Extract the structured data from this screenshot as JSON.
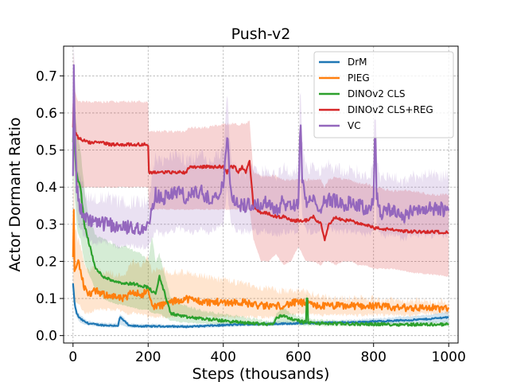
{
  "chart_data": {
    "type": "line",
    "title": "Push-v2",
    "xlabel": "Steps (thousands)",
    "ylabel": "Actor Dormant Ratio",
    "xlim": [
      -25,
      1025
    ],
    "ylim": [
      -0.02,
      0.78
    ],
    "xticks": [
      0,
      200,
      400,
      600,
      800,
      1000
    ],
    "xtick_labels": [
      "0",
      "200",
      "400",
      "600",
      "800",
      "1000"
    ],
    "yticks": [
      0.0,
      0.1,
      0.2,
      0.3,
      0.4,
      0.5,
      0.6,
      0.7
    ],
    "ytick_labels": [
      "0.0",
      "0.1",
      "0.2",
      "0.3",
      "0.4",
      "0.5",
      "0.6",
      "0.7"
    ],
    "grid": true,
    "legend_position": "top-right",
    "series": [
      {
        "name": "DrM",
        "color": "#1f77b4",
        "x": [
          0,
          3,
          6,
          10,
          15,
          20,
          30,
          40,
          60,
          80,
          100,
          120,
          125,
          150,
          200,
          250,
          300,
          350,
          400,
          450,
          500,
          550,
          600,
          650,
          700,
          750,
          800,
          850,
          900,
          950,
          1000
        ],
        "values": [
          0.14,
          0.1,
          0.075,
          0.06,
          0.05,
          0.045,
          0.038,
          0.033,
          0.03,
          0.028,
          0.027,
          0.027,
          0.05,
          0.026,
          0.025,
          0.025,
          0.024,
          0.026,
          0.028,
          0.03,
          0.031,
          0.032,
          0.033,
          0.034,
          0.035,
          0.036,
          0.038,
          0.04,
          0.042,
          0.045,
          0.05
        ],
        "band_low": [
          0.12,
          0.08,
          0.06,
          0.05,
          0.04,
          0.035,
          0.03,
          0.028,
          0.025,
          0.023,
          0.022,
          0.022,
          0.03,
          0.021,
          0.02,
          0.02,
          0.02,
          0.021,
          0.023,
          0.025,
          0.026,
          0.027,
          0.028,
          0.029,
          0.03,
          0.03,
          0.031,
          0.032,
          0.033,
          0.034,
          0.035
        ],
        "band_high": [
          0.16,
          0.12,
          0.09,
          0.07,
          0.06,
          0.055,
          0.046,
          0.04,
          0.036,
          0.034,
          0.033,
          0.033,
          0.06,
          0.032,
          0.031,
          0.03,
          0.029,
          0.031,
          0.034,
          0.036,
          0.037,
          0.038,
          0.039,
          0.04,
          0.041,
          0.043,
          0.046,
          0.049,
          0.052,
          0.056,
          0.065
        ],
        "jitter": 0.002
      },
      {
        "name": "PIEG",
        "color": "#ff7f0e",
        "x": [
          0,
          2,
          4,
          8,
          12,
          20,
          30,
          40,
          60,
          80,
          100,
          120,
          140,
          160,
          180,
          200,
          210,
          230,
          260,
          300,
          350,
          400,
          450,
          500,
          550,
          600,
          650,
          700,
          750,
          800,
          850,
          900,
          950,
          1000
        ],
        "values": [
          0.21,
          0.33,
          0.17,
          0.19,
          0.2,
          0.18,
          0.13,
          0.11,
          0.12,
          0.11,
          0.11,
          0.1,
          0.1,
          0.12,
          0.11,
          0.12,
          0.08,
          0.08,
          0.09,
          0.1,
          0.09,
          0.09,
          0.09,
          0.08,
          0.08,
          0.09,
          0.08,
          0.08,
          0.08,
          0.08,
          0.075,
          0.075,
          0.075,
          0.072
        ],
        "band_low": [
          0.1,
          0.15,
          0.08,
          0.09,
          0.09,
          0.08,
          0.06,
          0.06,
          0.07,
          0.07,
          0.07,
          0.07,
          0.06,
          0.06,
          0.06,
          0.05,
          0.05,
          0.05,
          0.05,
          0.05,
          0.05,
          0.05,
          0.05,
          0.05,
          0.05,
          0.06,
          0.055,
          0.055,
          0.055,
          0.055,
          0.055,
          0.055,
          0.06,
          0.06
        ],
        "band_high": [
          0.3,
          0.45,
          0.3,
          0.28,
          0.26,
          0.24,
          0.2,
          0.18,
          0.18,
          0.17,
          0.17,
          0.16,
          0.17,
          0.2,
          0.19,
          0.21,
          0.17,
          0.18,
          0.17,
          0.17,
          0.16,
          0.15,
          0.14,
          0.13,
          0.12,
          0.12,
          0.11,
          0.1,
          0.1,
          0.1,
          0.095,
          0.095,
          0.09,
          0.09
        ],
        "jitter": 0.01
      },
      {
        "name": "DINOv2 CLS",
        "color": "#2ca02c",
        "x": [
          0,
          2,
          4,
          8,
          12,
          20,
          30,
          40,
          50,
          60,
          80,
          100,
          120,
          140,
          160,
          180,
          200,
          210,
          220,
          230,
          260,
          300,
          350,
          400,
          450,
          500,
          530,
          545,
          560,
          580,
          600,
          620,
          623,
          626,
          650,
          700,
          750,
          800,
          850,
          900,
          950,
          1000
        ],
        "values": [
          0.52,
          0.6,
          0.52,
          0.45,
          0.42,
          0.4,
          0.3,
          0.26,
          0.22,
          0.18,
          0.16,
          0.15,
          0.145,
          0.14,
          0.14,
          0.135,
          0.13,
          0.12,
          0.11,
          0.16,
          0.06,
          0.05,
          0.045,
          0.04,
          0.035,
          0.032,
          0.03,
          0.05,
          0.055,
          0.045,
          0.04,
          0.035,
          0.13,
          0.035,
          0.033,
          0.032,
          0.031,
          0.031,
          0.03,
          0.03,
          0.03,
          0.03
        ],
        "band_low": [
          0.4,
          0.45,
          0.38,
          0.32,
          0.28,
          0.26,
          0.2,
          0.17,
          0.15,
          0.12,
          0.1,
          0.09,
          0.085,
          0.08,
          0.075,
          0.07,
          0.07,
          0.06,
          0.06,
          0.06,
          0.04,
          0.035,
          0.032,
          0.03,
          0.028,
          0.027,
          0.026,
          0.03,
          0.035,
          0.03,
          0.028,
          0.027,
          0.03,
          0.027,
          0.026,
          0.026,
          0.026,
          0.026,
          0.026,
          0.026,
          0.026,
          0.026
        ],
        "band_high": [
          0.65,
          0.72,
          0.65,
          0.58,
          0.54,
          0.5,
          0.4,
          0.33,
          0.3,
          0.27,
          0.26,
          0.25,
          0.24,
          0.24,
          0.23,
          0.22,
          0.2,
          0.27,
          0.2,
          0.22,
          0.1,
          0.08,
          0.065,
          0.058,
          0.05,
          0.042,
          0.038,
          0.065,
          0.075,
          0.06,
          0.052,
          0.045,
          0.14,
          0.045,
          0.042,
          0.04,
          0.038,
          0.037,
          0.036,
          0.036,
          0.036,
          0.036
        ],
        "jitter": 0.004
      },
      {
        "name": "DINOv2 CLS+REG",
        "color": "#d62728",
        "x": [
          0,
          2,
          4,
          6,
          10,
          15,
          20,
          30,
          40,
          60,
          80,
          100,
          120,
          140,
          160,
          180,
          200,
          201,
          250,
          300,
          310,
          350,
          400,
          410,
          420,
          430,
          440,
          450,
          460,
          470,
          480,
          500,
          520,
          540,
          560,
          580,
          600,
          620,
          640,
          660,
          670,
          680,
          700,
          720,
          740,
          760,
          780,
          800,
          850,
          900,
          950,
          1000
        ],
        "values": [
          0.56,
          0.65,
          0.58,
          0.55,
          0.54,
          0.53,
          0.53,
          0.525,
          0.52,
          0.52,
          0.52,
          0.515,
          0.515,
          0.515,
          0.515,
          0.515,
          0.515,
          0.44,
          0.44,
          0.44,
          0.455,
          0.455,
          0.455,
          0.44,
          0.455,
          0.455,
          0.44,
          0.455,
          0.44,
          0.47,
          0.35,
          0.33,
          0.33,
          0.32,
          0.32,
          0.31,
          0.31,
          0.31,
          0.32,
          0.3,
          0.26,
          0.3,
          0.32,
          0.31,
          0.31,
          0.3,
          0.3,
          0.29,
          0.285,
          0.28,
          0.28,
          0.278
        ],
        "band_low": [
          0.45,
          0.5,
          0.45,
          0.43,
          0.41,
          0.4,
          0.4,
          0.4,
          0.4,
          0.4,
          0.4,
          0.4,
          0.4,
          0.4,
          0.4,
          0.4,
          0.4,
          0.34,
          0.34,
          0.34,
          0.34,
          0.34,
          0.34,
          0.34,
          0.34,
          0.34,
          0.34,
          0.34,
          0.34,
          0.34,
          0.26,
          0.2,
          0.2,
          0.22,
          0.19,
          0.2,
          0.24,
          0.2,
          0.2,
          0.19,
          0.2,
          0.2,
          0.19,
          0.2,
          0.2,
          0.19,
          0.19,
          0.18,
          0.18,
          0.17,
          0.165,
          0.16
        ],
        "band_high": [
          0.67,
          0.76,
          0.7,
          0.66,
          0.64,
          0.63,
          0.63,
          0.63,
          0.63,
          0.63,
          0.63,
          0.63,
          0.63,
          0.63,
          0.63,
          0.63,
          0.63,
          0.55,
          0.55,
          0.55,
          0.56,
          0.56,
          0.57,
          0.57,
          0.57,
          0.57,
          0.57,
          0.57,
          0.57,
          0.58,
          0.44,
          0.43,
          0.43,
          0.43,
          0.42,
          0.42,
          0.42,
          0.42,
          0.42,
          0.42,
          0.4,
          0.42,
          0.43,
          0.42,
          0.42,
          0.41,
          0.41,
          0.4,
          0.39,
          0.39,
          0.38,
          0.38
        ],
        "jitter": 0.004
      },
      {
        "name": "VC",
        "color": "#9467bd",
        "x": [
          0,
          2,
          4,
          6,
          10,
          15,
          20,
          30,
          40,
          60,
          80,
          100,
          120,
          140,
          160,
          180,
          200,
          220,
          240,
          260,
          280,
          300,
          320,
          340,
          360,
          380,
          400,
          410,
          420,
          440,
          460,
          480,
          500,
          520,
          540,
          560,
          580,
          600,
          605,
          610,
          620,
          640,
          660,
          680,
          700,
          720,
          740,
          760,
          780,
          800,
          804,
          808,
          820,
          850,
          880,
          900,
          950,
          1000
        ],
        "values": [
          0.45,
          0.72,
          0.6,
          0.5,
          0.4,
          0.36,
          0.34,
          0.32,
          0.31,
          0.3,
          0.3,
          0.3,
          0.29,
          0.29,
          0.29,
          0.29,
          0.29,
          0.38,
          0.37,
          0.38,
          0.39,
          0.37,
          0.38,
          0.39,
          0.37,
          0.38,
          0.4,
          0.55,
          0.38,
          0.35,
          0.35,
          0.36,
          0.35,
          0.36,
          0.34,
          0.36,
          0.35,
          0.36,
          0.58,
          0.42,
          0.36,
          0.36,
          0.35,
          0.37,
          0.36,
          0.35,
          0.36,
          0.35,
          0.34,
          0.36,
          0.6,
          0.38,
          0.33,
          0.34,
          0.32,
          0.34,
          0.34,
          0.34
        ],
        "band_low": [
          0.35,
          0.6,
          0.5,
          0.42,
          0.33,
          0.3,
          0.29,
          0.27,
          0.26,
          0.25,
          0.25,
          0.25,
          0.24,
          0.24,
          0.24,
          0.24,
          0.24,
          0.28,
          0.27,
          0.28,
          0.29,
          0.28,
          0.28,
          0.29,
          0.28,
          0.29,
          0.3,
          0.4,
          0.3,
          0.28,
          0.28,
          0.28,
          0.28,
          0.28,
          0.27,
          0.28,
          0.28,
          0.28,
          0.45,
          0.32,
          0.28,
          0.28,
          0.28,
          0.29,
          0.28,
          0.28,
          0.28,
          0.28,
          0.27,
          0.28,
          0.45,
          0.3,
          0.27,
          0.27,
          0.26,
          0.27,
          0.27,
          0.27
        ],
        "band_high": [
          0.55,
          0.78,
          0.7,
          0.6,
          0.48,
          0.44,
          0.42,
          0.39,
          0.38,
          0.37,
          0.37,
          0.37,
          0.36,
          0.36,
          0.36,
          0.36,
          0.36,
          0.48,
          0.47,
          0.48,
          0.49,
          0.47,
          0.48,
          0.49,
          0.47,
          0.48,
          0.5,
          0.66,
          0.48,
          0.44,
          0.44,
          0.45,
          0.44,
          0.45,
          0.43,
          0.45,
          0.44,
          0.45,
          0.68,
          0.52,
          0.45,
          0.45,
          0.44,
          0.46,
          0.45,
          0.44,
          0.45,
          0.44,
          0.43,
          0.45,
          0.7,
          0.47,
          0.42,
          0.43,
          0.41,
          0.43,
          0.43,
          0.43
        ],
        "jitter": 0.02
      }
    ]
  }
}
